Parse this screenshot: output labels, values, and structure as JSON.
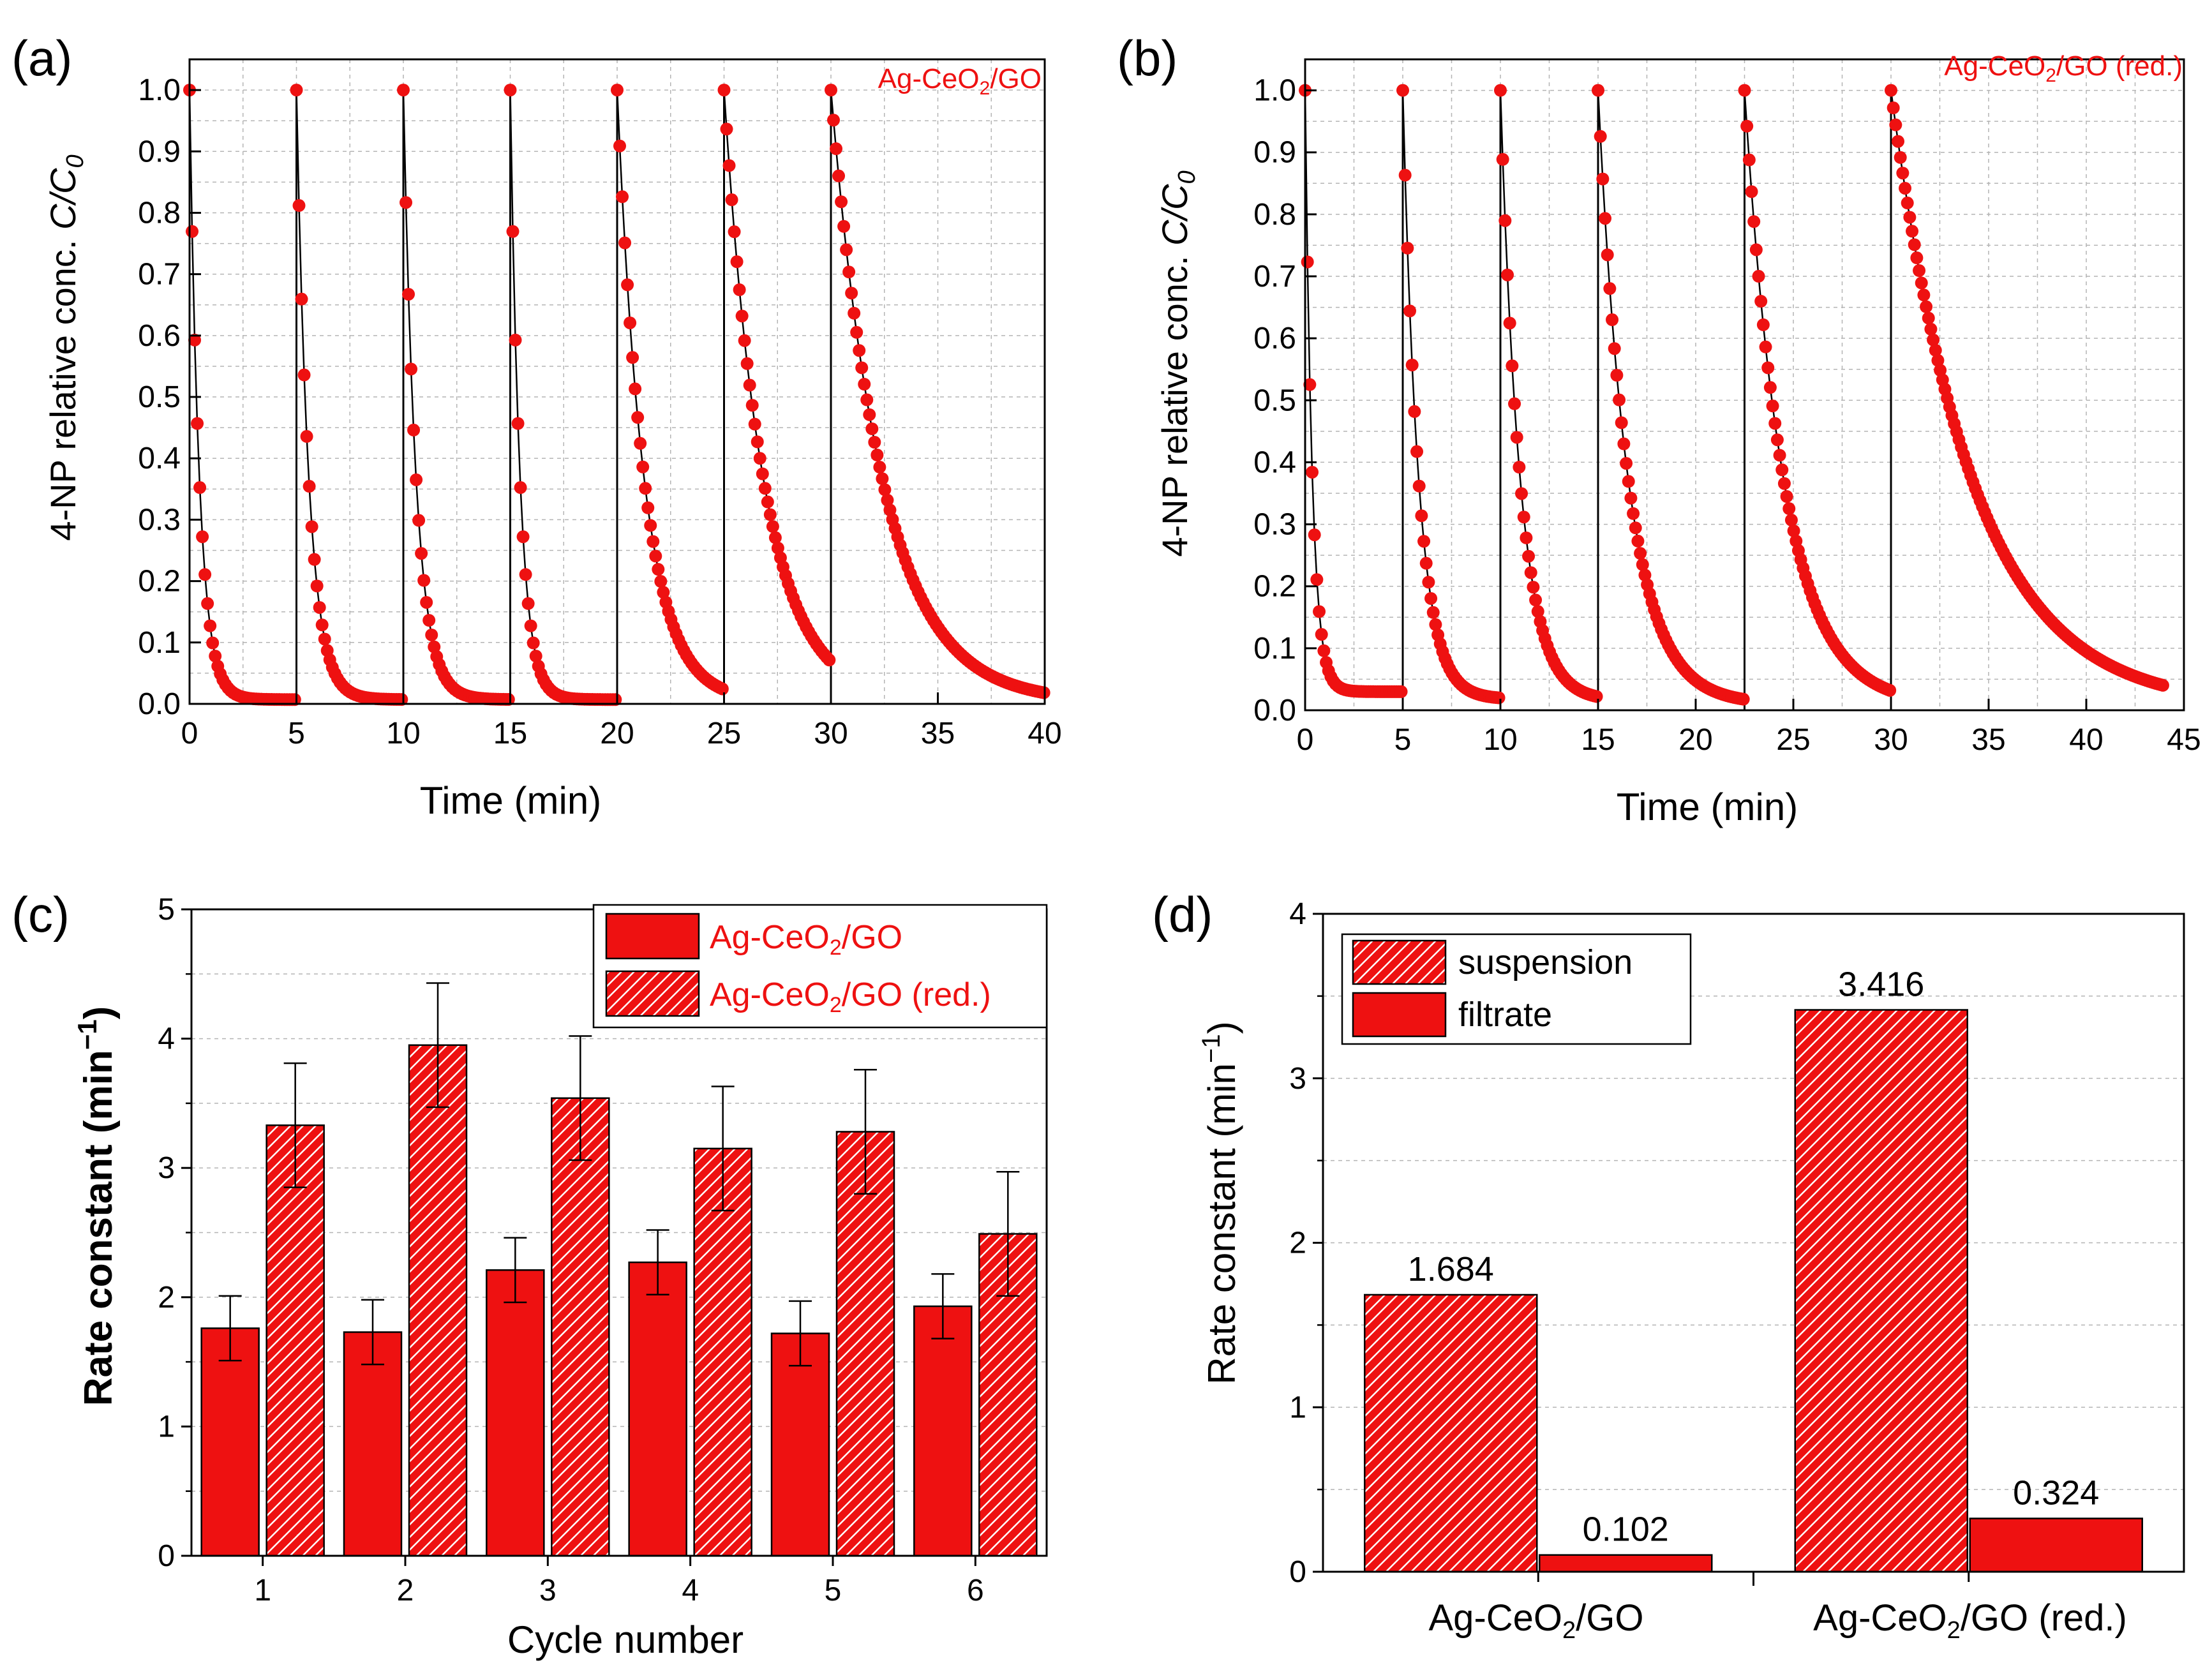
{
  "figure_colors": {
    "series": "#ee1111",
    "trace": "#000000",
    "grid": "#b4b4b4",
    "hatch_stripe": "#ffffff"
  },
  "panels": {
    "a": {
      "label": "(a)",
      "xlabel": "Time (min)",
      "ylabel_prefix": "4-NP relative conc. ",
      "ylabel_italic": "C/C",
      "ylabel_sub": "0",
      "legend_base": "Ag-CeO",
      "legend_sub": "2",
      "legend_rest": "/GO"
    },
    "b": {
      "label": "(b)",
      "xlabel": "Time (min)",
      "ylabel_prefix": "4-NP relative conc. ",
      "ylabel_italic": "C/C",
      "ylabel_sub": "0",
      "legend_base": "Ag-CeO",
      "legend_sub": "2",
      "legend_rest": "/GO (red.)"
    },
    "c": {
      "label": "(c)",
      "xlabel": "Cycle number",
      "ylabel": "Rate constant (min",
      "ylabel_sup": "−1",
      "ylabel_close": ")",
      "legend": [
        {
          "base": "Ag-CeO",
          "sub": "2",
          "rest": "/GO"
        },
        {
          "base": "Ag-CeO",
          "sub": "2",
          "rest": "/GO (red.)"
        }
      ]
    },
    "d": {
      "label": "(d)",
      "ylabel": "Rate constant (min",
      "ylabel_sup": "−1",
      "ylabel_close": ")",
      "legend": [
        "suspension",
        "filtrate"
      ],
      "category_labels": [
        {
          "base": "Ag-CeO",
          "sub": "2",
          "rest": "/GO"
        },
        {
          "base": "Ag-CeO",
          "sub": "2",
          "rest": "/GO (red.)"
        }
      ]
    }
  },
  "chart_data": [
    {
      "panel": "a",
      "type": "scatter",
      "title": "Ag-CeO2/GO",
      "xlabel": "Time (min)",
      "ylabel": "4-NP relative conc. C/C0",
      "xlim": [
        0,
        40
      ],
      "ylim": [
        0,
        1.05
      ],
      "xticks": [
        "0",
        "5",
        "10",
        "15",
        "20",
        "25",
        "30",
        "35",
        "40"
      ],
      "yticks": [
        "0.0",
        "0.1",
        "0.2",
        "0.3",
        "0.4",
        "0.5",
        "0.6",
        "0.7",
        "0.8",
        "0.9",
        "1.0"
      ],
      "cycles": [
        {
          "start": 0,
          "end": 5,
          "k": 2.2,
          "plateau": 0.007
        },
        {
          "start": 5,
          "end": 10,
          "k": 1.75,
          "plateau": 0.007
        },
        {
          "start": 10,
          "end": 15,
          "k": 1.7,
          "plateau": 0.007
        },
        {
          "start": 15,
          "end": 20,
          "k": 2.2,
          "plateau": 0.007
        },
        {
          "start": 20,
          "end": 25,
          "k": 0.8,
          "plateau": 0.005
        },
        {
          "start": 25,
          "end": 30,
          "k": 0.55,
          "plateau": 0.005
        },
        {
          "start": 30,
          "end": 40,
          "k": 0.42,
          "plateau": 0.003
        }
      ],
      "sampling_interval_min": 0.12
    },
    {
      "panel": "b",
      "type": "scatter",
      "title": "Ag-CeO2/GO (red.)",
      "xlabel": "Time (min)",
      "ylabel": "4-NP relative conc. C/C0",
      "xlim": [
        0,
        45
      ],
      "ylim": [
        0,
        1.05
      ],
      "xticks": [
        "0",
        "5",
        "10",
        "15",
        "20",
        "25",
        "30",
        "35",
        "40",
        "45"
      ],
      "yticks": [
        "0.0",
        "0.1",
        "0.2",
        "0.3",
        "0.4",
        "0.5",
        "0.6",
        "0.7",
        "0.8",
        "0.9",
        "1.0"
      ],
      "cycles": [
        {
          "start": 0,
          "end": 5,
          "k": 2.8,
          "plateau": 0.03
        },
        {
          "start": 5,
          "end": 10,
          "k": 1.25,
          "plateau": 0.018
        },
        {
          "start": 10,
          "end": 15,
          "k": 1.0,
          "plateau": 0.015
        },
        {
          "start": 15,
          "end": 22.5,
          "k": 0.65,
          "plateau": 0.01
        },
        {
          "start": 22.5,
          "end": 30,
          "k": 0.5,
          "plateau": 0.008
        },
        {
          "start": 30,
          "end": 44,
          "k": 0.24,
          "plateau": 0.005
        }
      ],
      "sampling_interval_min": 0.12
    },
    {
      "panel": "c",
      "type": "bar",
      "categories": [
        "1",
        "2",
        "3",
        "4",
        "5",
        "6"
      ],
      "series": [
        {
          "name": "Ag-CeO2/GO",
          "style": "solid",
          "values": [
            1.76,
            1.73,
            2.21,
            2.27,
            1.72,
            1.93
          ],
          "errors": [
            0.25,
            0.25,
            0.25,
            0.25,
            0.25,
            0.25
          ]
        },
        {
          "name": "Ag-CeO2/GO (red.)",
          "style": "hatched",
          "values": [
            3.33,
            3.95,
            3.54,
            3.15,
            3.28,
            2.49
          ],
          "errors": [
            0.48,
            0.48,
            0.48,
            0.48,
            0.48,
            0.48
          ]
        }
      ],
      "xlabel": "Cycle number",
      "ylabel": "Rate constant (min−1)",
      "ylim": [
        0,
        5
      ],
      "yticks": [
        "0",
        "1",
        "2",
        "3",
        "4",
        "5"
      ],
      "legend_position": "top-right"
    },
    {
      "panel": "d",
      "type": "bar",
      "categories": [
        "Ag-CeO2/GO",
        "Ag-CeO2/GO (red.)"
      ],
      "series": [
        {
          "name": "suspension",
          "style": "hatched",
          "values": [
            1.684,
            3.416
          ],
          "labels": [
            "1.684",
            "3.416"
          ]
        },
        {
          "name": "filtrate",
          "style": "solid",
          "values": [
            0.102,
            0.324
          ],
          "labels": [
            "0.102",
            "0.324"
          ]
        }
      ],
      "xlabel": "",
      "ylabel": "Rate constant (min−1)",
      "ylim": [
        0,
        4
      ],
      "yticks": [
        "0",
        "1",
        "2",
        "3",
        "4"
      ],
      "legend_position": "top-left"
    }
  ]
}
